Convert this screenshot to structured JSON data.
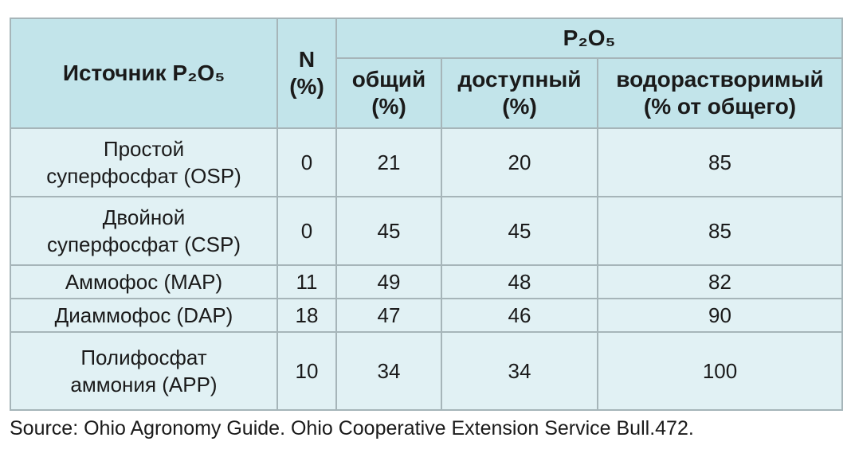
{
  "table": {
    "header": {
      "source": "Источник P₂O₅",
      "n": [
        "N",
        "(%)"
      ],
      "group": "P₂O₅",
      "total": [
        "общий",
        "(%)"
      ],
      "available": [
        "доступный",
        "(%)"
      ],
      "water_soluble": [
        "водорастворимый",
        "(% от общего)"
      ]
    },
    "rows": [
      {
        "source": [
          "Простой",
          "суперфосфат (OSP)"
        ],
        "n": 0,
        "total": 21,
        "available": 20,
        "water_soluble": 85
      },
      {
        "source": [
          "Двойной",
          "суперфосфат (CSP)"
        ],
        "n": 0,
        "total": 45,
        "available": 45,
        "water_soluble": 85
      },
      {
        "source": [
          "Аммофос (MAP)"
        ],
        "n": 11,
        "total": 49,
        "available": 48,
        "water_soluble": 82
      },
      {
        "source": [
          "Диаммофос (DAP)"
        ],
        "n": 18,
        "total": 47,
        "available": 46,
        "water_soluble": 90
      },
      {
        "source": [
          "Полифосфат",
          "аммония (APP)"
        ],
        "n": 10,
        "total": 34,
        "available": 34,
        "water_soluble": 100
      }
    ],
    "footnote": "Source: Ohio Agronomy Guide. Ohio Cooperative Extension Service Bull.472."
  }
}
